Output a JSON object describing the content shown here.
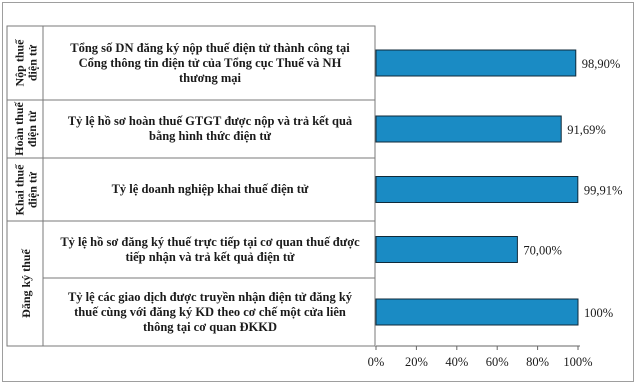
{
  "chart_data": {
    "type": "bar",
    "orientation": "horizontal",
    "categories": [
      "Tổng số DN đăng ký nộp thuế điện tử thành công tại Cổng thông tin điện tử của Tổng cục Thuế và NH thương mại",
      "Tỷ lệ hồ sơ hoàn thuế GTGT được nộp và trả kết quả bằng hình thức điện tử",
      "Tỷ lệ doanh nghiệp khai thuế điện tử",
      "Tỷ lệ hồ sơ đăng ký thuế trực tiếp tại cơ quan thuế được tiếp nhận và trả kết quả điện tử",
      "Tỷ lệ các giao dịch được truyền nhận điện tử đăng ký thuế cùng với đăng ký KD theo cơ chế một cửa liên thông tại cơ quan ĐKKD"
    ],
    "category_lines": [
      [
        "Tổng số DN đăng ký nộp thuế điện tử thành công tại",
        "Cổng thông tin điện tử của Tổng cục Thuế và NH",
        "thương mại"
      ],
      [
        "Tỷ lệ hồ sơ hoàn thuế GTGT được nộp và trả kết quả",
        "bằng hình thức điện tử"
      ],
      [
        "Tỷ lệ doanh nghiệp khai thuế điện tử"
      ],
      [
        "Tỷ lệ hồ sơ đăng ký thuế trực tiếp tại cơ quan thuế được",
        "tiếp nhận và trả kết quả điện tử"
      ],
      [
        "Tỷ lệ các giao dịch được truyền nhận điện tử đăng ký",
        "thuế cùng với đăng ký KD theo cơ chế một cửa liên",
        "thông tại cơ quan ĐKKD"
      ]
    ],
    "values": [
      98.9,
      91.69,
      99.91,
      70.0,
      100.0
    ],
    "value_labels": [
      "98,90%",
      "91,69%",
      "99,91%",
      "70,00%",
      "100%"
    ],
    "groups": [
      {
        "lines": [
          "Nộp thuế",
          "điện tử"
        ],
        "members": [
          0
        ]
      },
      {
        "lines": [
          "Hoàn thuế",
          "điện tử"
        ],
        "members": [
          1
        ]
      },
      {
        "lines": [
          "Khai thuế",
          "điện tử"
        ],
        "members": [
          2
        ]
      },
      {
        "lines": [
          "Đăng ký thuế"
        ],
        "members": [
          3,
          4
        ]
      }
    ],
    "xlim": [
      0,
      100
    ],
    "xticks": [
      "0%",
      "20%",
      "40%",
      "60%",
      "80%",
      "100%"
    ],
    "grid": false,
    "colors": {
      "bar": "#1a8bc4",
      "bar_edge": "#0f2a3a"
    }
  }
}
